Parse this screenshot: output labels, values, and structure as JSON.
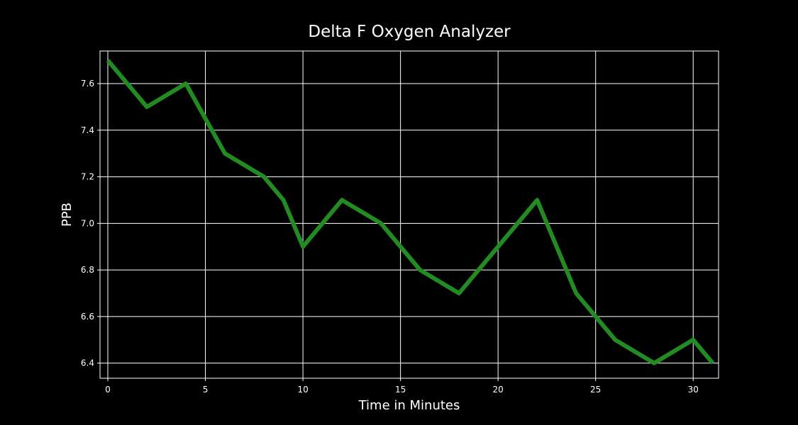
{
  "chart_data": {
    "type": "line",
    "title": "Delta F Oxygen Analyzer",
    "xlabel": "Time in Minutes",
    "ylabel": "PPB",
    "xlim": [
      -0.4,
      31.3
    ],
    "ylim": [
      6.335,
      7.74
    ],
    "x_ticks": [
      0,
      5,
      10,
      15,
      20,
      25,
      30
    ],
    "y_ticks": [
      6.4,
      6.6,
      6.8,
      7.0,
      7.2,
      7.4,
      7.6
    ],
    "grid": true,
    "line_color": "#228b22",
    "background_color": "#000000",
    "axis_color": "#ffffff",
    "series": [
      {
        "x": [
          0,
          2,
          4,
          6,
          8,
          9,
          10,
          12,
          14,
          16,
          18,
          20,
          22,
          24,
          26,
          28,
          30,
          31
        ],
        "y": [
          7.7,
          7.5,
          7.6,
          7.3,
          7.2,
          7.1,
          6.9,
          7.1,
          7.0,
          6.8,
          6.7,
          6.9,
          7.1,
          6.7,
          6.5,
          6.4,
          6.5,
          6.4
        ]
      }
    ]
  }
}
